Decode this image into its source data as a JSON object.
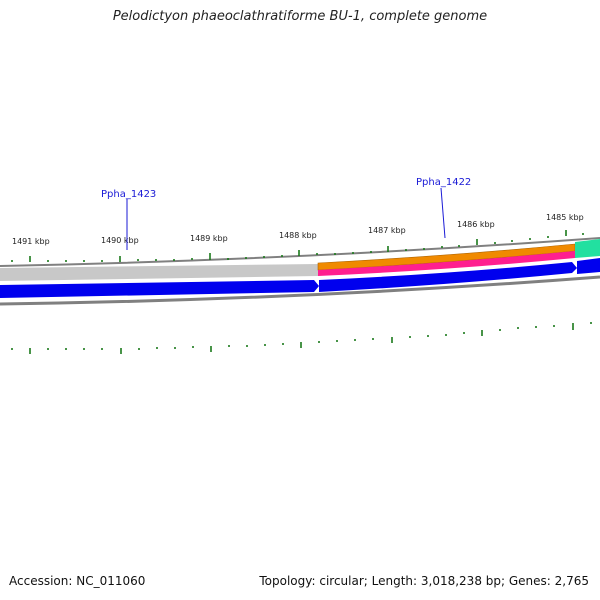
{
  "title": "Pelodictyon phaeoclathratiforme BU-1, complete genome",
  "footer": {
    "accession": "Accession: NC_011060",
    "summary": "Topology: circular; Length: 3,018,238 bp; Genes: 2,765"
  },
  "ticks": [
    {
      "label": "1491 kbp"
    },
    {
      "label": "1490 kbp"
    },
    {
      "label": "1489 kbp"
    },
    {
      "label": "1488 kbp"
    },
    {
      "label": "1487 kbp"
    },
    {
      "label": "1486 kbp"
    },
    {
      "label": "1485 kbp"
    }
  ],
  "gene_labels": [
    {
      "label": "Ppha_1423"
    },
    {
      "label": "Ppha_1422"
    }
  ],
  "colors": {
    "forward_cds": "#0000ee",
    "gray_track": "#c8c8c8",
    "orange_track": "#f08a00",
    "pink_track": "#ff1f8f",
    "green_track": "#22e0a0",
    "tick_marks": "#1a7a1a",
    "outline": "#808080"
  }
}
